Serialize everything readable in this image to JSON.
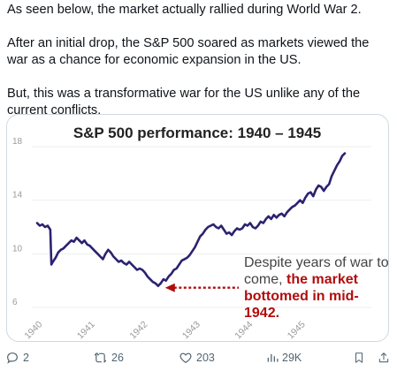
{
  "post": {
    "paragraphs": [
      "As seen below, the market actually rallied during World War 2.",
      "After an initial drop, the S&P 500 soared as markets viewed the war as a chance for economic expansion in the US.",
      "But, this was a transformative war for the US unlike any of the current conflicts."
    ]
  },
  "chart_data": {
    "type": "line",
    "title": "S&P 500 performance: 1940 – 1945",
    "xlabel": "",
    "ylabel": "",
    "ylim": [
      6,
      18
    ],
    "yticks": [
      6,
      10,
      14,
      18
    ],
    "xticks": [
      "1940",
      "1941",
      "1942",
      "1943",
      "1944",
      "1945"
    ],
    "xlim": [
      1940.0,
      1945.85
    ],
    "grid": "horizontal",
    "line_color": "#2b2270",
    "series": [
      {
        "name": "",
        "x": [
          1940.0,
          1940.05,
          1940.1,
          1940.15,
          1940.2,
          1940.25,
          1940.27,
          1940.3,
          1940.35,
          1940.4,
          1940.45,
          1940.5,
          1940.55,
          1940.6,
          1940.65,
          1940.7,
          1940.75,
          1940.8,
          1940.85,
          1940.9,
          1940.95,
          1941.0,
          1941.05,
          1941.1,
          1941.15,
          1941.2,
          1941.25,
          1941.3,
          1941.35,
          1941.4,
          1941.45,
          1941.5,
          1941.55,
          1941.6,
          1941.65,
          1941.7,
          1941.75,
          1941.8,
          1941.85,
          1941.9,
          1941.95,
          1942.0,
          1942.05,
          1942.1,
          1942.15,
          1942.2,
          1942.25,
          1942.3,
          1942.35,
          1942.4,
          1942.45,
          1942.5,
          1942.55,
          1942.6,
          1942.65,
          1942.7,
          1942.75,
          1942.8,
          1942.85,
          1942.9,
          1942.95,
          1943.0,
          1943.05,
          1943.1,
          1943.15,
          1943.2,
          1943.25,
          1943.3,
          1943.35,
          1943.4,
          1943.45,
          1943.5,
          1943.55,
          1943.6,
          1943.65,
          1943.7,
          1943.75,
          1943.8,
          1943.85,
          1943.9,
          1943.95,
          1944.0,
          1944.05,
          1944.1,
          1944.15,
          1944.2,
          1944.25,
          1944.3,
          1944.35,
          1944.4,
          1944.45,
          1944.5,
          1944.55,
          1944.6,
          1944.65,
          1944.7,
          1944.75,
          1944.8,
          1944.85,
          1944.9,
          1944.95,
          1945.0,
          1945.05,
          1945.1,
          1945.15,
          1945.2,
          1945.25,
          1945.3,
          1945.35,
          1945.4,
          1945.45,
          1945.5,
          1945.55,
          1945.6,
          1945.65,
          1945.7,
          1945.75,
          1945.8,
          1945.85
        ],
        "values": [
          12.3,
          12.1,
          12.2,
          12.0,
          12.1,
          11.8,
          9.2,
          9.4,
          9.7,
          10.1,
          10.3,
          10.4,
          10.6,
          10.8,
          11.0,
          10.9,
          11.2,
          11.0,
          10.8,
          11.0,
          10.7,
          10.6,
          10.4,
          10.2,
          10.0,
          9.8,
          9.6,
          10.0,
          10.3,
          10.1,
          9.8,
          9.6,
          9.4,
          9.5,
          9.3,
          9.2,
          9.4,
          9.2,
          9.0,
          8.8,
          8.9,
          8.8,
          8.6,
          8.3,
          8.1,
          7.9,
          7.8,
          7.6,
          7.8,
          8.1,
          8.0,
          8.3,
          8.5,
          8.8,
          8.9,
          9.2,
          9.5,
          9.6,
          9.7,
          9.9,
          10.2,
          10.5,
          10.9,
          11.3,
          11.5,
          11.8,
          12.0,
          12.1,
          12.2,
          12.0,
          11.9,
          12.1,
          11.8,
          11.5,
          11.6,
          11.4,
          11.7,
          11.9,
          11.8,
          11.9,
          12.2,
          12.1,
          12.3,
          12.0,
          11.9,
          12.1,
          12.4,
          12.3,
          12.6,
          12.8,
          12.6,
          12.9,
          12.7,
          12.9,
          13.0,
          12.8,
          13.1,
          13.3,
          13.5,
          13.6,
          13.8,
          14.0,
          13.8,
          14.2,
          14.5,
          14.6,
          14.3,
          14.8,
          15.1,
          15.0,
          14.7,
          15.0,
          15.2,
          15.8,
          16.2,
          16.6,
          16.9,
          17.3,
          17.5
        ]
      }
    ],
    "annotation": {
      "text_plain": "Despite years of war to come, ",
      "text_highlight": "the market bottomed in mid-1942.",
      "arrow_to_x": 1942.35,
      "arrow_to_y": 7.6,
      "arrow_color": "#b00d0d"
    }
  },
  "actions": {
    "reply_count": "2",
    "repost_count": "26",
    "like_count": "203",
    "views_count": "29K"
  },
  "icons": {
    "reply": "reply-icon",
    "repost": "repost-icon",
    "like": "heart-icon",
    "views": "views-icon",
    "bookmark": "bookmark-icon",
    "share": "share-icon"
  }
}
